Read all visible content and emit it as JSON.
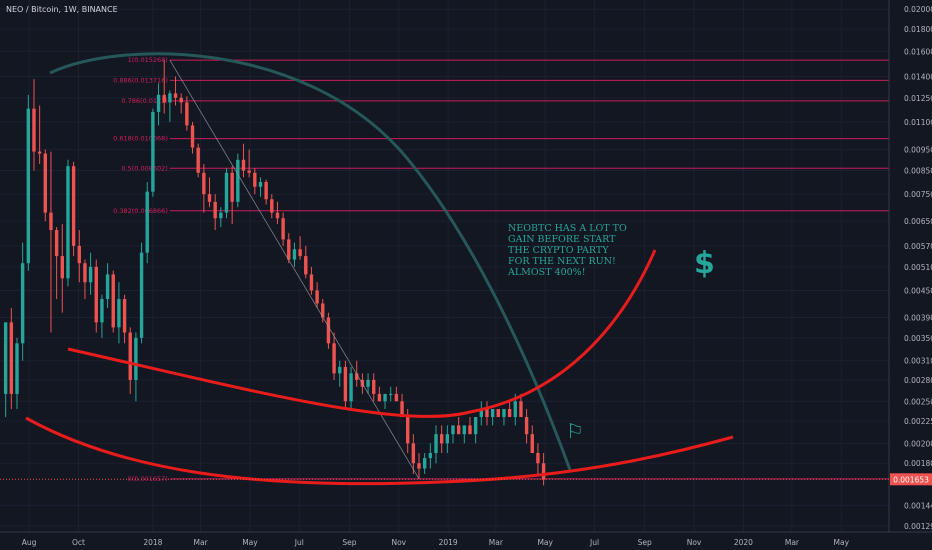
{
  "header": {
    "symbol_label": "NEO / Bitcoin, 1W, BINANCE"
  },
  "annotations": {
    "note_lines": [
      "NEOBTC HAS A LOT TO",
      "GAIN BEFORE START",
      "THE CRYPTO PARTY",
      "FOR THE NEXT RUN!",
      "ALMOST 400%!"
    ],
    "dollar_symbol": "$",
    "flag_symbol": "⚐"
  },
  "colors": {
    "background": "#131722",
    "bull": "#26a69a",
    "bear": "#ef5350",
    "fib": "#e91e63",
    "arc": "#26575b",
    "curve": "#e91c1c",
    "axis_text": "#b2b5be",
    "grid": "#1c2030"
  },
  "chart_data": {
    "type": "candlestick",
    "title": "NEO / Bitcoin, 1W, BINANCE",
    "y_ticks": [
      "0.020000",
      "0.018000",
      "0.016000",
      "0.014000",
      "0.012500",
      "0.011000",
      "0.009500",
      "0.008500",
      "0.007500",
      "0.006500",
      "0.005700",
      "0.005100",
      "0.004500",
      "0.003900",
      "0.003500",
      "0.003100",
      "0.002800",
      "0.002500",
      "0.002250",
      "0.002000",
      "0.001800",
      "0.001440",
      "0.001290"
    ],
    "y_tick_values": [
      0.02,
      0.018,
      0.016,
      0.014,
      0.0125,
      0.011,
      0.0095,
      0.0085,
      0.0075,
      0.0065,
      0.0057,
      0.0051,
      0.0045,
      0.0039,
      0.0035,
      0.0031,
      0.0028,
      0.0025,
      0.00225,
      0.002,
      0.0018,
      0.00144,
      0.00129
    ],
    "x_ticks": [
      "Aug",
      "Oct",
      "2018",
      "Mar",
      "May",
      "Jul",
      "Sep",
      "Nov",
      "2019",
      "Mar",
      "May",
      "Jul",
      "Sep",
      "Nov",
      "2020",
      "Mar",
      "May"
    ],
    "x_tick_dates": [
      "2017-08-01",
      "2017-10-01",
      "2018-01-01",
      "2018-03-01",
      "2018-05-01",
      "2018-07-01",
      "2018-09-01",
      "2018-11-01",
      "2019-01-01",
      "2019-03-01",
      "2019-05-01",
      "2019-07-01",
      "2019-09-01",
      "2019-11-01",
      "2020-01-01",
      "2020-03-01",
      "2020-05-01"
    ],
    "x_range": [
      "2017-06-26",
      "2020-06-29"
    ],
    "log_scale": true,
    "grid": true,
    "fib_levels": [
      {
        "label": "1(0.015268)",
        "value": 0.015268
      },
      {
        "label": "0.886(0.013716)",
        "value": 0.013716
      },
      {
        "label": "0.786(0.0123)",
        "value": 0.0123
      },
      {
        "label": "0.618(0.010068)",
        "value": 0.010068
      },
      {
        "label": "0.5(0.008602)",
        "value": 0.008602
      },
      {
        "label": "0.382(0.006866)",
        "value": 0.006866
      },
      {
        "label": "0(0.001657)",
        "value": 0.001657
      }
    ],
    "last_price_label": "0.001653",
    "last_price": 0.001653,
    "candles": [
      {
        "d": "2017-07-03",
        "o": 0.0026,
        "h": 0.0038,
        "l": 0.0023,
        "c": 0.0038
      },
      {
        "d": "2017-07-10",
        "o": 0.0038,
        "h": 0.0041,
        "l": 0.0024,
        "c": 0.0026
      },
      {
        "d": "2017-07-17",
        "o": 0.0026,
        "h": 0.0035,
        "l": 0.0024,
        "c": 0.0034
      },
      {
        "d": "2017-07-24",
        "o": 0.0034,
        "h": 0.0058,
        "l": 0.0031,
        "c": 0.0052
      },
      {
        "d": "2017-07-31",
        "o": 0.0052,
        "h": 0.0127,
        "l": 0.005,
        "c": 0.0118
      },
      {
        "d": "2017-08-07",
        "o": 0.0118,
        "h": 0.0138,
        "l": 0.0085,
        "c": 0.0094
      },
      {
        "d": "2017-08-14",
        "o": 0.0094,
        "h": 0.012,
        "l": 0.0088,
        "c": 0.0093
      },
      {
        "d": "2017-08-21",
        "o": 0.0093,
        "h": 0.0095,
        "l": 0.0065,
        "c": 0.0068
      },
      {
        "d": "2017-08-28",
        "o": 0.0068,
        "h": 0.0094,
        "l": 0.0036,
        "c": 0.0062
      },
      {
        "d": "2017-09-04",
        "o": 0.0062,
        "h": 0.0063,
        "l": 0.0043,
        "c": 0.0054
      },
      {
        "d": "2017-09-11",
        "o": 0.0054,
        "h": 0.0064,
        "l": 0.004,
        "c": 0.0048
      },
      {
        "d": "2017-09-18",
        "o": 0.0048,
        "h": 0.009,
        "l": 0.0046,
        "c": 0.0087
      },
      {
        "d": "2017-09-25",
        "o": 0.0087,
        "h": 0.0089,
        "l": 0.0054,
        "c": 0.0057
      },
      {
        "d": "2017-10-02",
        "o": 0.0057,
        "h": 0.0062,
        "l": 0.0047,
        "c": 0.0052
      },
      {
        "d": "2017-10-09",
        "o": 0.0052,
        "h": 0.0053,
        "l": 0.0043,
        "c": 0.0047
      },
      {
        "d": "2017-10-16",
        "o": 0.0047,
        "h": 0.0055,
        "l": 0.0044,
        "c": 0.0051
      },
      {
        "d": "2017-10-23",
        "o": 0.0051,
        "h": 0.0053,
        "l": 0.0036,
        "c": 0.0038
      },
      {
        "d": "2017-10-30",
        "o": 0.0038,
        "h": 0.0044,
        "l": 0.0035,
        "c": 0.0043
      },
      {
        "d": "2017-11-06",
        "o": 0.0043,
        "h": 0.0052,
        "l": 0.0041,
        "c": 0.0049
      },
      {
        "d": "2017-11-13",
        "o": 0.0049,
        "h": 0.005,
        "l": 0.0036,
        "c": 0.0037
      },
      {
        "d": "2017-11-20",
        "o": 0.0037,
        "h": 0.0047,
        "l": 0.0034,
        "c": 0.0043
      },
      {
        "d": "2017-11-27",
        "o": 0.0043,
        "h": 0.0044,
        "l": 0.0034,
        "c": 0.0036
      },
      {
        "d": "2017-12-04",
        "o": 0.0036,
        "h": 0.0037,
        "l": 0.0026,
        "c": 0.0028
      },
      {
        "d": "2017-12-11",
        "o": 0.0028,
        "h": 0.0036,
        "l": 0.0025,
        "c": 0.0035
      },
      {
        "d": "2017-12-18",
        "o": 0.0035,
        "h": 0.0058,
        "l": 0.0034,
        "c": 0.0055
      },
      {
        "d": "2017-12-25",
        "o": 0.0055,
        "h": 0.008,
        "l": 0.0052,
        "c": 0.0076
      },
      {
        "d": "2018-01-01",
        "o": 0.0076,
        "h": 0.0118,
        "l": 0.0074,
        "c": 0.0116
      },
      {
        "d": "2018-01-08",
        "o": 0.0116,
        "h": 0.0135,
        "l": 0.0108,
        "c": 0.0127
      },
      {
        "d": "2018-01-15",
        "o": 0.0127,
        "h": 0.0153,
        "l": 0.0115,
        "c": 0.0122
      },
      {
        "d": "2018-01-22",
        "o": 0.0122,
        "h": 0.013,
        "l": 0.011,
        "c": 0.0128
      },
      {
        "d": "2018-01-29",
        "o": 0.0128,
        "h": 0.014,
        "l": 0.012,
        "c": 0.0125
      },
      {
        "d": "2018-02-05",
        "o": 0.0125,
        "h": 0.0128,
        "l": 0.0115,
        "c": 0.0122
      },
      {
        "d": "2018-02-12",
        "o": 0.0122,
        "h": 0.0126,
        "l": 0.0105,
        "c": 0.0108
      },
      {
        "d": "2018-02-19",
        "o": 0.0108,
        "h": 0.011,
        "l": 0.0093,
        "c": 0.0096
      },
      {
        "d": "2018-02-26",
        "o": 0.0096,
        "h": 0.0098,
        "l": 0.0082,
        "c": 0.0084
      },
      {
        "d": "2018-03-05",
        "o": 0.0084,
        "h": 0.0088,
        "l": 0.0068,
        "c": 0.0075
      },
      {
        "d": "2018-03-12",
        "o": 0.0075,
        "h": 0.0082,
        "l": 0.007,
        "c": 0.0072
      },
      {
        "d": "2018-03-19",
        "o": 0.0072,
        "h": 0.0075,
        "l": 0.0062,
        "c": 0.0066
      },
      {
        "d": "2018-03-26",
        "o": 0.0066,
        "h": 0.007,
        "l": 0.0063,
        "c": 0.0068
      },
      {
        "d": "2018-04-02",
        "o": 0.0068,
        "h": 0.0086,
        "l": 0.0066,
        "c": 0.0084
      },
      {
        "d": "2018-04-09",
        "o": 0.0084,
        "h": 0.0087,
        "l": 0.0064,
        "c": 0.0072
      },
      {
        "d": "2018-04-16",
        "o": 0.0072,
        "h": 0.0093,
        "l": 0.007,
        "c": 0.009
      },
      {
        "d": "2018-04-23",
        "o": 0.009,
        "h": 0.0098,
        "l": 0.0082,
        "c": 0.0085
      },
      {
        "d": "2018-04-30",
        "o": 0.0085,
        "h": 0.0095,
        "l": 0.0082,
        "c": 0.0084
      },
      {
        "d": "2018-05-07",
        "o": 0.0084,
        "h": 0.0086,
        "l": 0.0075,
        "c": 0.0078
      },
      {
        "d": "2018-05-14",
        "o": 0.0078,
        "h": 0.0082,
        "l": 0.0074,
        "c": 0.008
      },
      {
        "d": "2018-05-21",
        "o": 0.008,
        "h": 0.0081,
        "l": 0.0071,
        "c": 0.0073
      },
      {
        "d": "2018-05-28",
        "o": 0.0073,
        "h": 0.0075,
        "l": 0.0066,
        "c": 0.0068
      },
      {
        "d": "2018-06-04",
        "o": 0.0068,
        "h": 0.0072,
        "l": 0.0064,
        "c": 0.0066
      },
      {
        "d": "2018-06-11",
        "o": 0.0066,
        "h": 0.0068,
        "l": 0.0057,
        "c": 0.0059
      },
      {
        "d": "2018-06-18",
        "o": 0.0059,
        "h": 0.0061,
        "l": 0.0052,
        "c": 0.0053
      },
      {
        "d": "2018-06-25",
        "o": 0.0053,
        "h": 0.0058,
        "l": 0.0051,
        "c": 0.0056
      },
      {
        "d": "2018-07-02",
        "o": 0.0056,
        "h": 0.006,
        "l": 0.0053,
        "c": 0.0054
      },
      {
        "d": "2018-07-09",
        "o": 0.0054,
        "h": 0.0057,
        "l": 0.0048,
        "c": 0.0049
      },
      {
        "d": "2018-07-16",
        "o": 0.0049,
        "h": 0.0051,
        "l": 0.0044,
        "c": 0.0045
      },
      {
        "d": "2018-07-23",
        "o": 0.0045,
        "h": 0.0047,
        "l": 0.0041,
        "c": 0.0042
      },
      {
        "d": "2018-07-30",
        "o": 0.0042,
        "h": 0.0043,
        "l": 0.0038,
        "c": 0.0039
      },
      {
        "d": "2018-08-06",
        "o": 0.0039,
        "h": 0.004,
        "l": 0.0033,
        "c": 0.0034
      },
      {
        "d": "2018-08-13",
        "o": 0.0034,
        "h": 0.0036,
        "l": 0.0028,
        "c": 0.0029
      },
      {
        "d": "2018-08-20",
        "o": 0.0029,
        "h": 0.0031,
        "l": 0.0027,
        "c": 0.003
      },
      {
        "d": "2018-08-27",
        "o": 0.003,
        "h": 0.0031,
        "l": 0.0024,
        "c": 0.0025
      },
      {
        "d": "2018-09-03",
        "o": 0.0025,
        "h": 0.003,
        "l": 0.0024,
        "c": 0.0029
      },
      {
        "d": "2018-09-10",
        "o": 0.0029,
        "h": 0.0031,
        "l": 0.0027,
        "c": 0.0028
      },
      {
        "d": "2018-09-17",
        "o": 0.0028,
        "h": 0.0029,
        "l": 0.0026,
        "c": 0.0027
      },
      {
        "d": "2018-09-24",
        "o": 0.0027,
        "h": 0.0029,
        "l": 0.0026,
        "c": 0.0028
      },
      {
        "d": "2018-10-01",
        "o": 0.0028,
        "h": 0.0029,
        "l": 0.0025,
        "c": 0.0026
      },
      {
        "d": "2018-10-08",
        "o": 0.0026,
        "h": 0.0027,
        "l": 0.0025,
        "c": 0.0025
      },
      {
        "d": "2018-10-15",
        "o": 0.0025,
        "h": 0.0026,
        "l": 0.0024,
        "c": 0.0026
      },
      {
        "d": "2018-10-22",
        "o": 0.0026,
        "h": 0.0027,
        "l": 0.0025,
        "c": 0.0026
      },
      {
        "d": "2018-10-29",
        "o": 0.0026,
        "h": 0.0027,
        "l": 0.0025,
        "c": 0.0025
      },
      {
        "d": "2018-11-05",
        "o": 0.0025,
        "h": 0.0026,
        "l": 0.0023,
        "c": 0.0023
      },
      {
        "d": "2018-11-12",
        "o": 0.0023,
        "h": 0.0024,
        "l": 0.0019,
        "c": 0.002
      },
      {
        "d": "2018-11-19",
        "o": 0.002,
        "h": 0.0021,
        "l": 0.0017,
        "c": 0.0018
      },
      {
        "d": "2018-11-26",
        "o": 0.0018,
        "h": 0.0019,
        "l": 0.00166,
        "c": 0.00175
      },
      {
        "d": "2018-12-03",
        "o": 0.00175,
        "h": 0.0019,
        "l": 0.0017,
        "c": 0.00185
      },
      {
        "d": "2018-12-10",
        "o": 0.00185,
        "h": 0.002,
        "l": 0.00175,
        "c": 0.0019
      },
      {
        "d": "2018-12-17",
        "o": 0.0019,
        "h": 0.0022,
        "l": 0.0018,
        "c": 0.0021
      },
      {
        "d": "2018-12-24",
        "o": 0.0021,
        "h": 0.0022,
        "l": 0.0019,
        "c": 0.002
      },
      {
        "d": "2018-12-31",
        "o": 0.002,
        "h": 0.0022,
        "l": 0.0019,
        "c": 0.0021
      },
      {
        "d": "2019-01-07",
        "o": 0.0021,
        "h": 0.0022,
        "l": 0.002,
        "c": 0.0022
      },
      {
        "d": "2019-01-14",
        "o": 0.0022,
        "h": 0.0023,
        "l": 0.0021,
        "c": 0.0021
      },
      {
        "d": "2019-01-21",
        "o": 0.0021,
        "h": 0.0022,
        "l": 0.002,
        "c": 0.0022
      },
      {
        "d": "2019-01-28",
        "o": 0.0022,
        "h": 0.0023,
        "l": 0.0021,
        "c": 0.0021
      },
      {
        "d": "2019-02-04",
        "o": 0.0021,
        "h": 0.0023,
        "l": 0.002,
        "c": 0.0023
      },
      {
        "d": "2019-02-11",
        "o": 0.0023,
        "h": 0.0025,
        "l": 0.0022,
        "c": 0.0024
      },
      {
        "d": "2019-02-18",
        "o": 0.0024,
        "h": 0.0025,
        "l": 0.0022,
        "c": 0.0023
      },
      {
        "d": "2019-02-25",
        "o": 0.0023,
        "h": 0.0024,
        "l": 0.0022,
        "c": 0.0024
      },
      {
        "d": "2019-03-04",
        "o": 0.0024,
        "h": 0.0024,
        "l": 0.0023,
        "c": 0.0023
      },
      {
        "d": "2019-03-11",
        "o": 0.0023,
        "h": 0.0024,
        "l": 0.0022,
        "c": 0.0024
      },
      {
        "d": "2019-03-18",
        "o": 0.0024,
        "h": 0.0025,
        "l": 0.0023,
        "c": 0.0023
      },
      {
        "d": "2019-03-25",
        "o": 0.0023,
        "h": 0.0026,
        "l": 0.0022,
        "c": 0.0025
      },
      {
        "d": "2019-04-01",
        "o": 0.0025,
        "h": 0.0026,
        "l": 0.0023,
        "c": 0.0023
      },
      {
        "d": "2019-04-08",
        "o": 0.0023,
        "h": 0.0024,
        "l": 0.002,
        "c": 0.0021
      },
      {
        "d": "2019-04-15",
        "o": 0.0021,
        "h": 0.0022,
        "l": 0.0019,
        "c": 0.0019
      },
      {
        "d": "2019-04-22",
        "o": 0.0019,
        "h": 0.002,
        "l": 0.0017,
        "c": 0.0018
      },
      {
        "d": "2019-04-29",
        "o": 0.0018,
        "h": 0.0019,
        "l": 0.0016,
        "c": 0.00165
      }
    ]
  }
}
